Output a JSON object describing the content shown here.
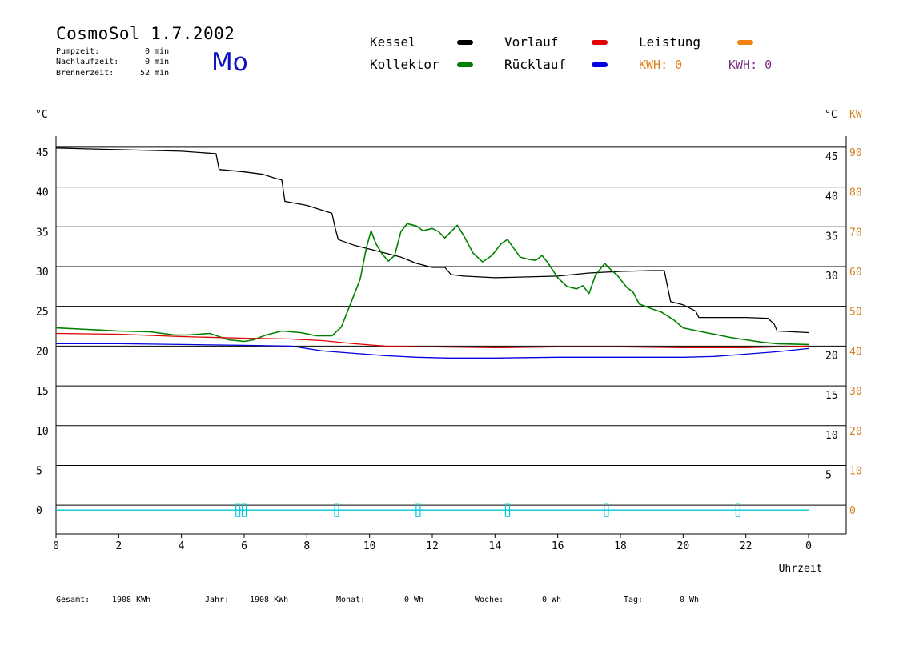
{
  "header": {
    "title": "CosmoSol 1.7.2002",
    "stats": [
      {
        "label": "Pumpzeit:",
        "value": "0 min"
      },
      {
        "label": "Nachlaufzeit:",
        "value": "0 min"
      },
      {
        "label": "Brennerzeit:",
        "value": "52 min"
      }
    ],
    "day": "Mo"
  },
  "legend": {
    "items": [
      {
        "label": "Kessel",
        "color": "#000000"
      },
      {
        "label": "Vorlauf",
        "color": "#e00000"
      },
      {
        "label": "Leistung",
        "color": "#f08010"
      },
      {
        "label": "Kollektor",
        "color": "#008000"
      },
      {
        "label": "Rücklauf",
        "color": "#0000e0"
      }
    ],
    "kwh1": "KWH: 0",
    "kwh1_color": "#e08020",
    "kwh2": "KWH: 0",
    "kwh2_color": "#803080"
  },
  "footer": [
    {
      "label": "Gesamt:",
      "value": "1908 KWh"
    },
    {
      "label": "Jahr:",
      "value": "1908 KWh"
    },
    {
      "label": "Monat:",
      "value": "0 Wh"
    },
    {
      "label": "Woche:",
      "value": "0 Wh"
    },
    {
      "label": "Tag:",
      "value": "0 Wh"
    }
  ],
  "chart_data": {
    "type": "line",
    "xlabel": "Uhrzeit",
    "ylabel_left": "°C",
    "ylabel_right": "°C",
    "ylabel_right2": "KW",
    "xlim": [
      0,
      24
    ],
    "ylim": [
      -3,
      47
    ],
    "x_ticks": [
      "0",
      "2",
      "4",
      "6",
      "8",
      "10",
      "12",
      "14",
      "16",
      "18",
      "20",
      "22",
      "0"
    ],
    "y_ticks_left": [
      "45",
      "40",
      "35",
      "30",
      "25",
      "20",
      "15",
      "10",
      "5",
      "0"
    ],
    "y_ticks_right": [
      "45",
      "40",
      "35",
      "30",
      "20",
      "15",
      "10",
      "5"
    ],
    "y_ticks_kw": [
      "90",
      "80",
      "70",
      "60",
      "50",
      "40",
      "30",
      "20",
      "10",
      "0"
    ],
    "grid": true,
    "series": [
      {
        "name": "Kessel",
        "color": "#000000",
        "points": [
          [
            0,
            45.5
          ],
          [
            2,
            45.3
          ],
          [
            4,
            45.1
          ],
          [
            5.1,
            44.8
          ],
          [
            5.2,
            42.8
          ],
          [
            6,
            42.5
          ],
          [
            6.6,
            42.2
          ],
          [
            7,
            41.7
          ],
          [
            7.2,
            41.5
          ],
          [
            7.3,
            38.8
          ],
          [
            8,
            38.3
          ],
          [
            8.8,
            37.3
          ],
          [
            8.9,
            35.5
          ],
          [
            9,
            34
          ],
          [
            9.5,
            33.3
          ],
          [
            10,
            32.8
          ],
          [
            11,
            31.8
          ],
          [
            11.5,
            31
          ],
          [
            12,
            30.5
          ],
          [
            12.4,
            30.5
          ],
          [
            12.6,
            29.6
          ],
          [
            13,
            29.4
          ],
          [
            14,
            29.2
          ],
          [
            16,
            29.4
          ],
          [
            17,
            29.8
          ],
          [
            18,
            30
          ],
          [
            19,
            30.1
          ],
          [
            19.4,
            30.1
          ],
          [
            19.6,
            26.2
          ],
          [
            20,
            25.8
          ],
          [
            20.4,
            25
          ],
          [
            20.5,
            24.2
          ],
          [
            21,
            24.2
          ],
          [
            22,
            24.2
          ],
          [
            22.7,
            24.1
          ],
          [
            22.9,
            23.4
          ],
          [
            23,
            22.5
          ],
          [
            24,
            22.3
          ]
        ]
      },
      {
        "name": "Kollektor",
        "color": "#008000",
        "points": [
          [
            0,
            22.9
          ],
          [
            1,
            22.7
          ],
          [
            2,
            22.5
          ],
          [
            3,
            22.4
          ],
          [
            3.8,
            22
          ],
          [
            4.2,
            22
          ],
          [
            4.9,
            22.2
          ],
          [
            5.5,
            21.4
          ],
          [
            6,
            21.2
          ],
          [
            6.3,
            21.4
          ],
          [
            6.7,
            22
          ],
          [
            7.2,
            22.5
          ],
          [
            7.8,
            22.3
          ],
          [
            8.3,
            21.9
          ],
          [
            8.8,
            21.9
          ],
          [
            9.1,
            23
          ],
          [
            9.4,
            26
          ],
          [
            9.7,
            29
          ],
          [
            9.9,
            33
          ],
          [
            10.05,
            35.1
          ],
          [
            10.2,
            33.5
          ],
          [
            10.4,
            32.2
          ],
          [
            10.6,
            31.3
          ],
          [
            10.8,
            32
          ],
          [
            11,
            35
          ],
          [
            11.2,
            36
          ],
          [
            11.5,
            35.7
          ],
          [
            11.7,
            35.1
          ],
          [
            12,
            35.4
          ],
          [
            12.2,
            35
          ],
          [
            12.4,
            34.2
          ],
          [
            12.6,
            35
          ],
          [
            12.8,
            35.8
          ],
          [
            13,
            34.5
          ],
          [
            13.3,
            32.3
          ],
          [
            13.6,
            31.2
          ],
          [
            13.9,
            32
          ],
          [
            14.2,
            33.5
          ],
          [
            14.4,
            34
          ],
          [
            14.6,
            32.9
          ],
          [
            14.8,
            31.8
          ],
          [
            15.1,
            31.5
          ],
          [
            15.3,
            31.4
          ],
          [
            15.5,
            32
          ],
          [
            15.7,
            31
          ],
          [
            16,
            29.2
          ],
          [
            16.3,
            28.1
          ],
          [
            16.6,
            27.8
          ],
          [
            16.8,
            28.2
          ],
          [
            17,
            27.2
          ],
          [
            17.2,
            29.5
          ],
          [
            17.5,
            31
          ],
          [
            17.7,
            30.2
          ],
          [
            17.9,
            29.5
          ],
          [
            18.2,
            28
          ],
          [
            18.4,
            27.4
          ],
          [
            18.6,
            25.9
          ],
          [
            19,
            25.3
          ],
          [
            19.3,
            24.9
          ],
          [
            19.7,
            23.9
          ],
          [
            20,
            22.9
          ],
          [
            20.6,
            22.4
          ],
          [
            21,
            22.1
          ],
          [
            21.5,
            21.7
          ],
          [
            22,
            21.4
          ],
          [
            22.5,
            21.1
          ],
          [
            23,
            20.9
          ],
          [
            24,
            20.8
          ]
        ]
      },
      {
        "name": "Vorlauf",
        "color": "#e00000",
        "points": [
          [
            0,
            22.2
          ],
          [
            2,
            22.1
          ],
          [
            4,
            21.8
          ],
          [
            6,
            21.6
          ],
          [
            7.5,
            21.5
          ],
          [
            8.5,
            21.3
          ],
          [
            9.5,
            20.9
          ],
          [
            10.5,
            20.6
          ],
          [
            12,
            20.5
          ],
          [
            14,
            20.4
          ],
          [
            16,
            20.5
          ],
          [
            18,
            20.5
          ],
          [
            20,
            20.4
          ],
          [
            22,
            20.4
          ],
          [
            24,
            20.6
          ]
        ]
      },
      {
        "name": "Rücklauf",
        "color": "#0000e0",
        "points": [
          [
            0,
            20.9
          ],
          [
            2,
            20.9
          ],
          [
            4,
            20.8
          ],
          [
            6,
            20.7
          ],
          [
            7.5,
            20.6
          ],
          [
            8.5,
            20
          ],
          [
            9.5,
            19.7
          ],
          [
            10.5,
            19.4
          ],
          [
            11.5,
            19.2
          ],
          [
            12.5,
            19.1
          ],
          [
            14,
            19.1
          ],
          [
            16,
            19.2
          ],
          [
            18,
            19.2
          ],
          [
            20,
            19.2
          ],
          [
            21,
            19.3
          ],
          [
            22,
            19.6
          ],
          [
            23,
            19.9
          ],
          [
            24,
            20.3
          ]
        ]
      },
      {
        "name": "Leistung",
        "color": "#00c8d8",
        "points": [
          [
            0,
            0
          ],
          [
            24,
            0
          ]
        ],
        "markers_x": [
          5.8,
          6.0,
          8.95,
          11.55,
          14.4,
          17.55,
          21.75
        ]
      }
    ]
  },
  "axis_colors": {
    "kw": "#d08020",
    "burner": "#00c8d8"
  }
}
